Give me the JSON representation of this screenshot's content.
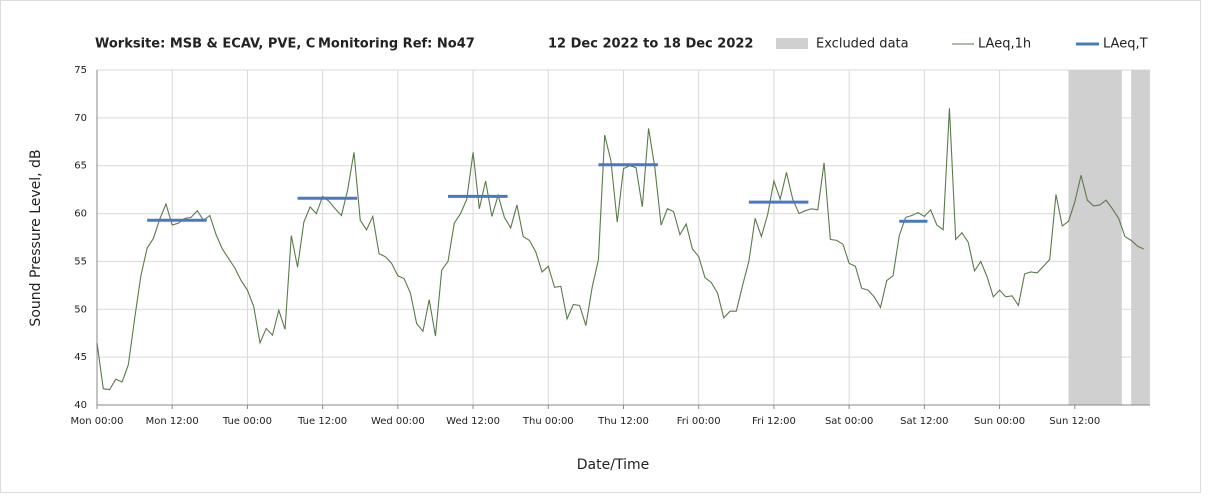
{
  "chart_data": {
    "type": "line",
    "title": "Worksite: MSB & ECAV, PVE, C",
    "reference": "Monitoring Ref: No47",
    "period": "12 Dec 2022 to 18 Dec 2022",
    "x_label": "Date/Time",
    "y_label": "Sound Pressure Level, dB",
    "xlim": [
      0,
      168
    ],
    "ylim": [
      40,
      75
    ],
    "xticks": [
      {
        "value": 0,
        "label": "Mon 00:00"
      },
      {
        "value": 12,
        "label": "Mon 12:00"
      },
      {
        "value": 24,
        "label": "Tue 00:00"
      },
      {
        "value": 36,
        "label": "Tue 12:00"
      },
      {
        "value": 48,
        "label": "Wed 00:00"
      },
      {
        "value": 60,
        "label": "Wed 12:00"
      },
      {
        "value": 72,
        "label": "Thu 00:00"
      },
      {
        "value": 84,
        "label": "Thu 12:00"
      },
      {
        "value": 96,
        "label": "Fri 00:00"
      },
      {
        "value": 108,
        "label": "Fri 12:00"
      },
      {
        "value": 120,
        "label": "Sat 00:00"
      },
      {
        "value": 132,
        "label": "Sat 12:00"
      },
      {
        "value": 144,
        "label": "Sun 00:00"
      },
      {
        "value": 156,
        "label": "Sun 12:00"
      }
    ],
    "yticks": [
      40,
      45,
      50,
      55,
      60,
      65,
      70,
      75
    ],
    "grid": true,
    "excluded": {
      "name": "Excluded data",
      "color": "#d0d0d0",
      "ranges": [
        [
          155,
          163.5
        ],
        [
          165,
          168
        ]
      ]
    },
    "series": [
      {
        "name": "LAeq,1h",
        "color": "#5b7a4b",
        "x": [
          0,
          1,
          2,
          3,
          4,
          5,
          6,
          7,
          8,
          9,
          10,
          11,
          12,
          13,
          14,
          15,
          16,
          17,
          18,
          19,
          20,
          21,
          22,
          23,
          24,
          25,
          26,
          27,
          28,
          29,
          30,
          31,
          32,
          33,
          34,
          35,
          36,
          37,
          38,
          39,
          40,
          41,
          42,
          43,
          44,
          45,
          46,
          47,
          48,
          49,
          50,
          51,
          52,
          53,
          54,
          55,
          56,
          57,
          58,
          59,
          60,
          61,
          62,
          63,
          64,
          65,
          66,
          67,
          68,
          69,
          70,
          71,
          72,
          73,
          74,
          75,
          76,
          77,
          78,
          79,
          80,
          81,
          82,
          83,
          84,
          85,
          86,
          87,
          88,
          89,
          90,
          91,
          92,
          93,
          94,
          95,
          96,
          97,
          98,
          99,
          100,
          101,
          102,
          103,
          104,
          105,
          106,
          107,
          108,
          109,
          110,
          111,
          112,
          113,
          114,
          115,
          116,
          117,
          118,
          119,
          120,
          121,
          122,
          123,
          124,
          125,
          126,
          127,
          128,
          129,
          130,
          131,
          132,
          133,
          134,
          135,
          136,
          137,
          138,
          139,
          140,
          141,
          142,
          143,
          144,
          145,
          146,
          147,
          148,
          149,
          150,
          151,
          152,
          153,
          154,
          155,
          156,
          157,
          158,
          159,
          160,
          161,
          162,
          163,
          164,
          165,
          166,
          167
        ],
        "values": [
          46.5,
          41.7,
          41.6,
          42.7,
          42.4,
          44.2,
          49,
          53.5,
          56.4,
          57.4,
          59.4,
          61,
          58.8,
          59,
          59.5,
          59.6,
          60.3,
          59.3,
          59.8,
          57.8,
          56.3,
          55.3,
          54.3,
          53,
          52,
          50.3,
          46.5,
          48,
          47.3,
          49.9,
          47.9,
          57.7,
          54.4,
          59.1,
          60.7,
          60,
          61.8,
          61.3,
          60.5,
          59.8,
          62.5,
          66.4,
          59.3,
          58.3,
          59.7,
          55.8,
          55.5,
          54.8,
          53.5,
          53.2,
          51.7,
          48.5,
          47.7,
          51,
          47.2,
          54.1,
          55,
          59,
          60,
          61.5,
          66.4,
          60.5,
          63.4,
          59.7,
          61.9,
          59.6,
          58.5,
          60.9,
          57.6,
          57.2,
          56,
          53.9,
          54.5,
          52.3,
          52.4,
          49,
          50.5,
          50.4,
          48.3,
          52.3,
          55.2,
          68.2,
          65.5,
          59.1,
          64.7,
          65,
          64.8,
          60.7,
          68.9,
          64.8,
          58.8,
          60.5,
          60.2,
          57.8,
          58.9,
          56.3,
          55.5,
          53.3,
          52.8,
          51.7,
          49.1,
          49.8,
          49.8,
          52.5,
          55,
          59.5,
          57.6,
          59.9,
          63.4,
          61.5,
          64.3,
          61.5,
          60,
          60.3,
          60.5,
          60.4,
          65.3,
          57.3,
          57.2,
          56.8,
          54.8,
          54.5,
          52.2,
          52,
          51.3,
          50.2,
          53,
          53.5,
          57.7,
          59.6,
          59.8,
          60.1,
          59.7,
          60.4,
          58.8,
          58.3,
          71,
          57.3,
          58,
          57,
          54,
          55,
          53.4,
          51.3,
          52,
          51.3,
          51.4,
          50.4,
          53.7,
          53.9,
          53.8,
          54.5,
          55.2,
          62,
          58.7,
          59.2,
          61.2,
          64,
          61.4,
          60.8,
          60.9,
          61.4,
          60.5,
          59.5,
          57.6,
          57.2,
          56.6,
          56.3
        ]
      },
      {
        "name": "LAeq,T",
        "color": "#4a78c2",
        "segments": [
          {
            "x": [
              8,
              17.5
            ],
            "value": 59.3
          },
          {
            "x": [
              32,
              41.5
            ],
            "value": 61.6
          },
          {
            "x": [
              56,
              65.5
            ],
            "value": 61.8
          },
          {
            "x": [
              80,
              89.5
            ],
            "value": 65.1
          },
          {
            "x": [
              104,
              113.5
            ],
            "value": 61.2
          },
          {
            "x": [
              128,
              132.5
            ],
            "value": 59.2
          }
        ]
      }
    ]
  }
}
